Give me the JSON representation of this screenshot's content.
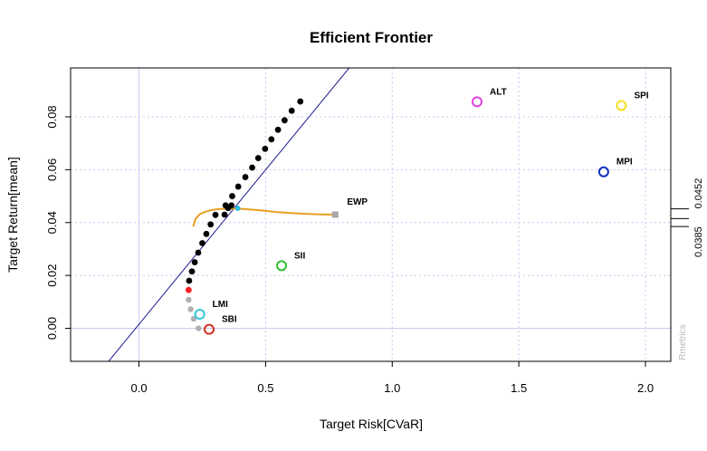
{
  "chart_data": {
    "type": "scatter",
    "title": "Efficient Frontier",
    "xlabel": "Target Risk[CVaR]",
    "ylabel": "Target Return[mean]",
    "xlim": [
      -0.27,
      2.1
    ],
    "ylim": [
      -0.0125,
      0.0985
    ],
    "x_ticks": [
      {
        "value": 0.0,
        "label": "0.0"
      },
      {
        "value": 0.5,
        "label": "0.5"
      },
      {
        "value": 1.0,
        "label": "1.0"
      },
      {
        "value": 1.5,
        "label": "1.5"
      },
      {
        "value": 2.0,
        "label": "2.0"
      }
    ],
    "y_ticks": [
      {
        "value": 0.0,
        "label": "0.00"
      },
      {
        "value": 0.02,
        "label": "0.02"
      },
      {
        "value": 0.04,
        "label": "0.04"
      },
      {
        "value": 0.06,
        "label": "0.06"
      },
      {
        "value": 0.08,
        "label": "0.08"
      }
    ],
    "grid": true,
    "grid_color": "#c8c8f0",
    "zero_line_color": "#c8c8f0",
    "right_axis": {
      "ticks": [
        {
          "value": 0.0385,
          "label": "0.0385"
        },
        {
          "value": 0.0415,
          "label": ""
        },
        {
          "value": 0.0452,
          "label": "0.0452"
        }
      ]
    },
    "credit": "Rmetrics",
    "tangency_line": {
      "points": [
        [
          -0.12,
          -0.0125
        ],
        [
          0.83,
          0.0985
        ]
      ],
      "color": "#1a1a8c"
    },
    "efficient_frontier": {
      "color": "#000000",
      "points": [
        [
          0.198,
          0.018
        ],
        [
          0.209,
          0.0215
        ],
        [
          0.22,
          0.025
        ],
        [
          0.234,
          0.0286
        ],
        [
          0.25,
          0.0322
        ],
        [
          0.266,
          0.0357
        ],
        [
          0.283,
          0.0393
        ],
        [
          0.302,
          0.0429
        ],
        [
          0.342,
          0.0465
        ],
        [
          0.368,
          0.05
        ],
        [
          0.392,
          0.0536
        ],
        [
          0.42,
          0.0572
        ],
        [
          0.447,
          0.0608
        ],
        [
          0.471,
          0.0644
        ],
        [
          0.498,
          0.0679
        ],
        [
          0.523,
          0.0715
        ],
        [
          0.549,
          0.0751
        ],
        [
          0.575,
          0.0787
        ],
        [
          0.603,
          0.0823
        ],
        [
          0.637,
          0.0858
        ],
        [
          0.338,
          0.043
        ],
        [
          0.352,
          0.0455
        ],
        [
          0.365,
          0.0465
        ]
      ]
    },
    "minimum_risk_point": {
      "x": 0.196,
      "y": 0.0145,
      "color": "#ff2020"
    },
    "inefficient_frontier": {
      "color": "#b0b0b0",
      "points": [
        [
          0.196,
          0.0108
        ],
        [
          0.204,
          0.0072
        ],
        [
          0.216,
          0.0036
        ],
        [
          0.235,
          0.0
        ]
      ]
    },
    "equal_weights_curve": {
      "color": "#e8a020",
      "points": [
        [
          0.214,
          0.0385
        ],
        [
          0.224,
          0.0415
        ],
        [
          0.24,
          0.0432
        ],
        [
          0.262,
          0.0441
        ],
        [
          0.29,
          0.0448
        ],
        [
          0.325,
          0.0452
        ],
        [
          0.37,
          0.0453
        ],
        [
          0.42,
          0.0451
        ],
        [
          0.48,
          0.0446
        ],
        [
          0.54,
          0.044
        ],
        [
          0.6,
          0.0436
        ],
        [
          0.66,
          0.0433
        ],
        [
          0.72,
          0.0431
        ],
        [
          0.77,
          0.043
        ]
      ],
      "end_marker": {
        "x": 0.775,
        "y": 0.043,
        "label": "EWP"
      }
    },
    "tangency_point": {
      "x": 0.39,
      "y": 0.0454,
      "color": "#30c0e0"
    },
    "assets": [
      {
        "name": "ALT",
        "x": 1.335,
        "y": 0.0857,
        "color": "#e040e0"
      },
      {
        "name": "SPI",
        "x": 1.905,
        "y": 0.0843,
        "color": "#f0e020"
      },
      {
        "name": "MPI",
        "x": 1.835,
        "y": 0.0592,
        "color": "#1030c0"
      },
      {
        "name": "SII",
        "x": 0.563,
        "y": 0.0237,
        "color": "#30c030"
      },
      {
        "name": "LMI",
        "x": 0.24,
        "y": 0.0053,
        "color": "#30c8d8"
      },
      {
        "name": "SBI",
        "x": 0.277,
        "y": -0.0004,
        "color": "#d03020"
      }
    ]
  }
}
